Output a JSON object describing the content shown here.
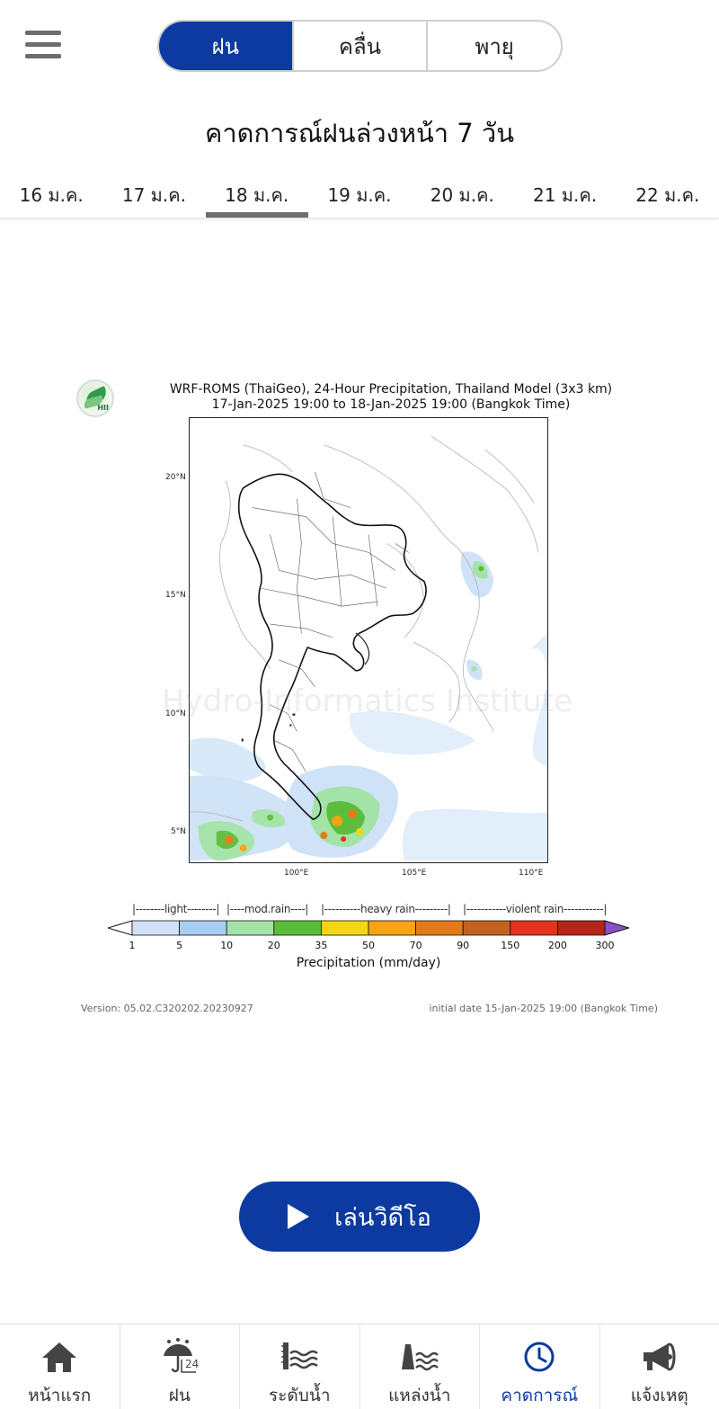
{
  "header": {
    "menu_icon": "hamburger-menu-icon",
    "segments": [
      {
        "label": "ฝน",
        "active": true
      },
      {
        "label": "คลื่น",
        "active": false
      },
      {
        "label": "พายุ",
        "active": false
      }
    ],
    "title": "คาดการณ์ฝนล่วงหน้า 7 วัน"
  },
  "date_tabs": [
    {
      "label": "16 ม.ค.",
      "active": false
    },
    {
      "label": "17 ม.ค.",
      "active": false
    },
    {
      "label": "18 ม.ค.",
      "active": true
    },
    {
      "label": "19 ม.ค.",
      "active": false
    },
    {
      "label": "20 ม.ค.",
      "active": false
    },
    {
      "label": "21 ม.ค.",
      "active": false
    },
    {
      "label": "22 ม.ค.",
      "active": false
    }
  ],
  "figure": {
    "logo_text": "HII",
    "title_line1": "WRF-ROMS (ThaiGeo), 24-Hour Precipitation, Thailand Model (3x3 km)",
    "title_line2": "17-Jan-2025 19:00 to 18-Jan-2025 19:00 (Bangkok Time)",
    "watermark": "Hydro-Informatics Institute",
    "lat_labels": [
      "20°N",
      "15°N",
      "10°N",
      "5°N"
    ],
    "lon_labels": [
      "100°E",
      "105°E",
      "110°E"
    ],
    "colorbar": {
      "categories": [
        "|--------light--------|",
        "|----mod.rain----|",
        "|----------heavy rain---------|",
        "|-----------violent rain-----------|"
      ],
      "ticks": [
        "1",
        "5",
        "10",
        "20",
        "35",
        "50",
        "70",
        "90",
        "150",
        "200",
        "300"
      ],
      "colors": [
        "#cfe2f7",
        "#a9cdf2",
        "#a3e3a8",
        "#5cbd3c",
        "#f4d617",
        "#f6a316",
        "#e27a1a",
        "#c2621e",
        "#e3331d",
        "#b5241a",
        "#7d1515"
      ],
      "under_color": "#ffffff",
      "over_color": "#8a4fc7",
      "label": "Precipitation (mm/day)"
    },
    "version": "Version: 05.02.C320202.20230927",
    "initial_date": "initial date 15-Jan-2025 19:00 (Bangkok Time)"
  },
  "play_button": {
    "label": "เล่นวิดีโอ",
    "icon": "play-icon"
  },
  "bottom_nav": [
    {
      "label": "หน้าแรก",
      "icon": "home-icon",
      "active": false
    },
    {
      "label": "ฝน",
      "icon": "rain-umbrella-24-icon",
      "active": false
    },
    {
      "label": "ระดับน้ำ",
      "icon": "water-level-icon",
      "active": false
    },
    {
      "label": "แหล่งน้ำ",
      "icon": "reservoir-icon",
      "active": false
    },
    {
      "label": "คาดการณ์",
      "icon": "clock-forecast-icon",
      "active": true
    },
    {
      "label": "แจ้งเหตุ",
      "icon": "megaphone-icon",
      "active": false
    }
  ],
  "colors": {
    "primary": "#0c3aa0",
    "tab_indicator": "#6d6d6d"
  }
}
